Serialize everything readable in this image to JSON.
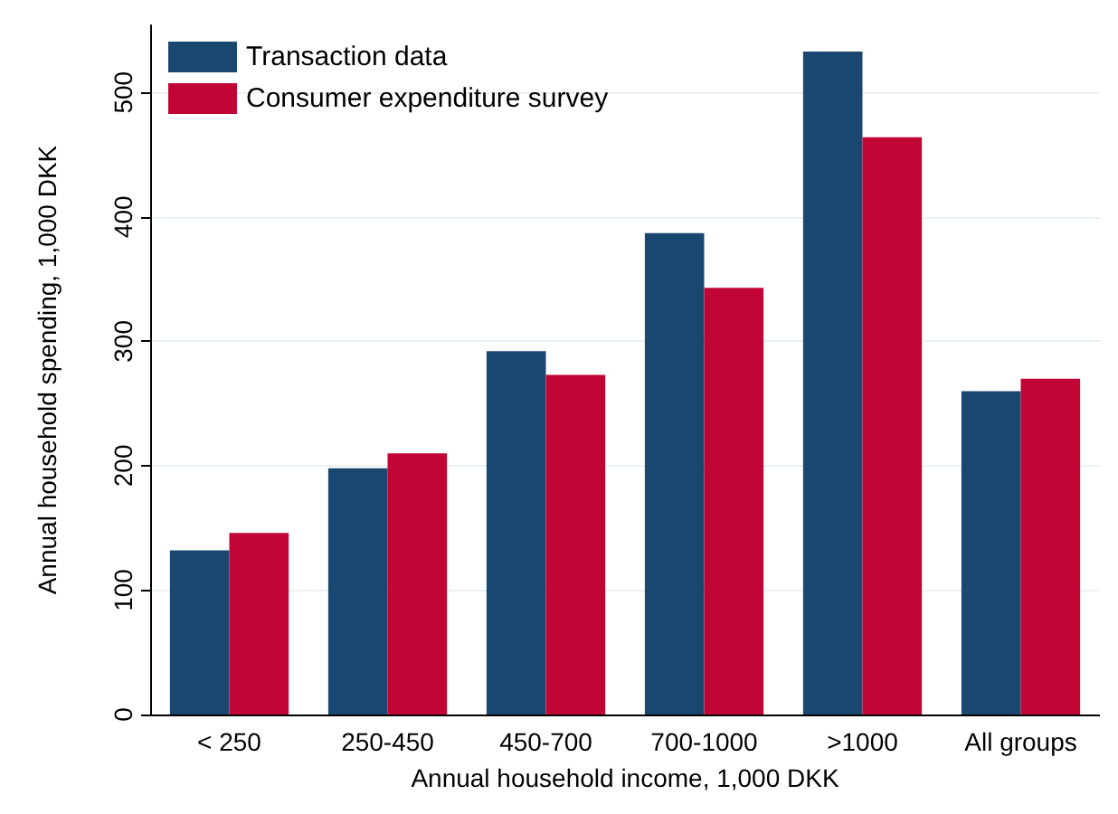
{
  "chart_data": {
    "type": "bar",
    "xlabel": "Annual household income, 1,000 DKK",
    "ylabel": "Annual household spending, 1,000 DKK",
    "categories": [
      "< 250",
      "250-450",
      "450-700",
      "700-1000",
      ">1000",
      "All groups"
    ],
    "series": [
      {
        "name": "Transaction data",
        "color": "#1a476f",
        "values": [
          132,
          198,
          292,
          387,
          533,
          260
        ]
      },
      {
        "name": "Consumer expenditure survey",
        "color": "#c10534",
        "values": [
          146,
          210,
          273,
          343,
          464,
          270
        ]
      }
    ],
    "ylim": [
      0,
      554
    ],
    "yticks": [
      0,
      100,
      200,
      300,
      400,
      500
    ],
    "grid": "y",
    "legend": "top left"
  }
}
